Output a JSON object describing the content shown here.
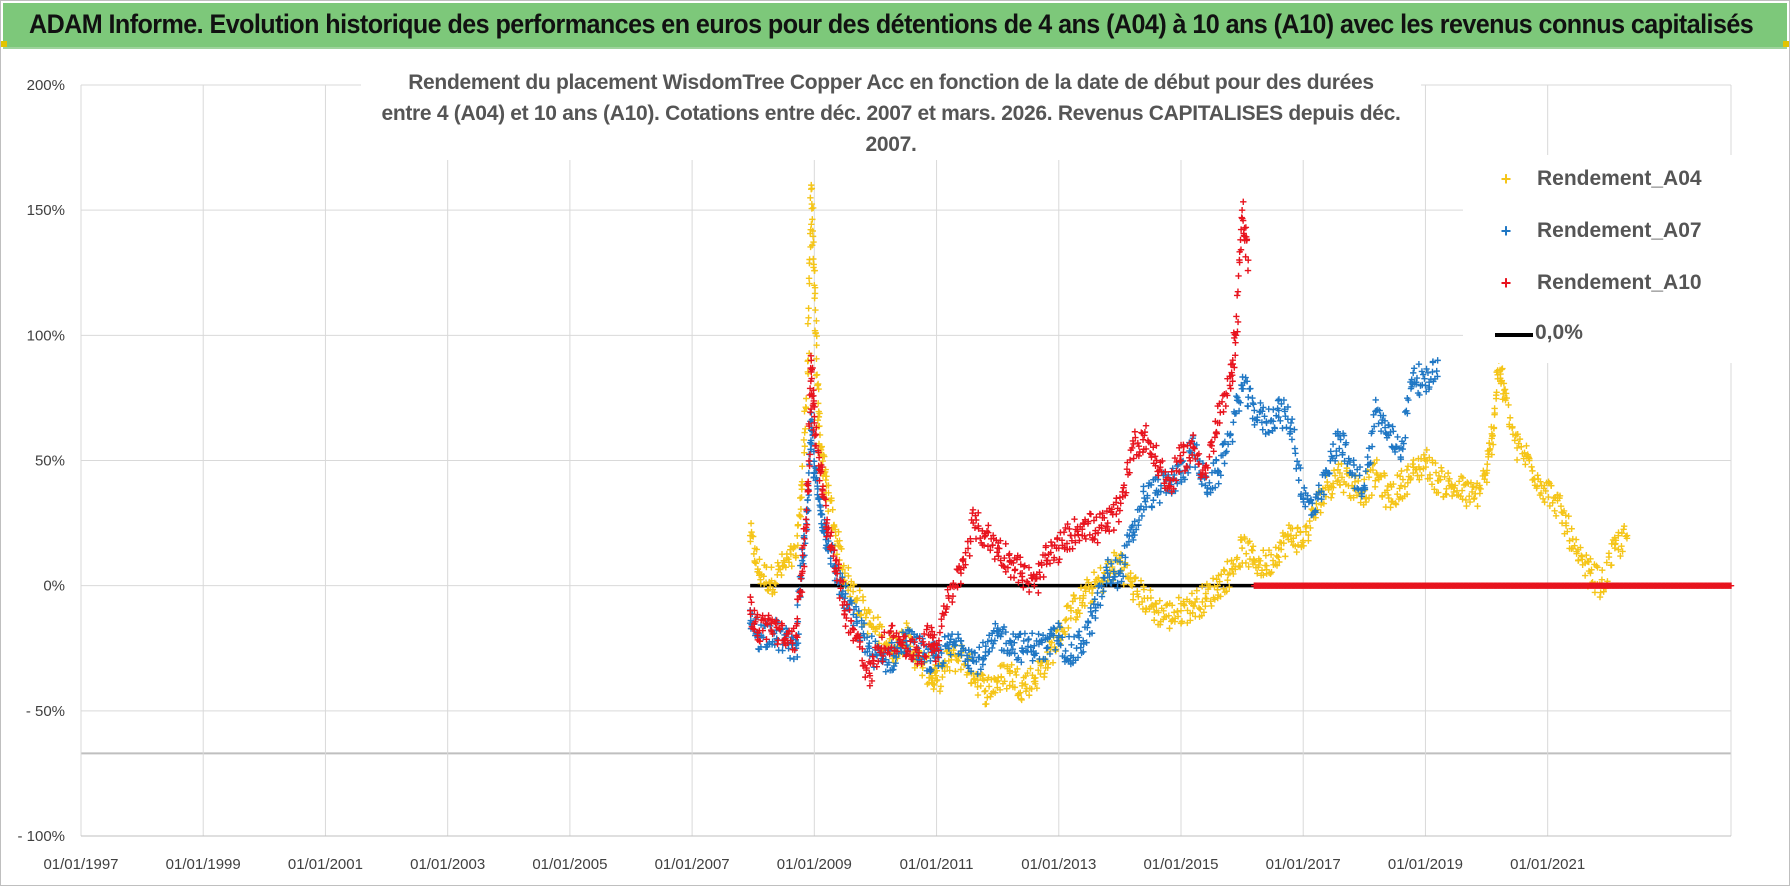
{
  "banner": {
    "title": "ADAM Informe. Evolution historique des performances en euros pour des détentions de 4 ans (A04) à 10 ans (A10) avec les revenus connus capitalisés"
  },
  "colors": {
    "banner": "#7dc87a",
    "a04": "#f5c518",
    "a07": "#1f77c4",
    "a10": "#e8141e",
    "zero": "#000000",
    "grid": "#d9d9d9"
  },
  "chart_data": {
    "type": "scatter",
    "title_line1": "Rendement du placement WisdomTree Copper Acc en fonction de la date de début pour des durées",
    "title_line2": "entre 4 (A04) et 10 ans (A10). Cotations entre déc. 2007 et mars. 2026. Revenus CAPITALISES depuis déc. 2007.",
    "xlabel": "",
    "ylabel": "",
    "x_range": [
      1997.0,
      2024.0
    ],
    "ylim": [
      -100,
      200
    ],
    "y_ticks": [
      200,
      150,
      100,
      50,
      0,
      -50,
      -100
    ],
    "y_tick_labels": [
      "200%",
      "150%",
      "100%",
      "50%",
      "0%",
      "- 50%",
      "- 100%"
    ],
    "x_ticks": [
      1997,
      1999,
      2001,
      2003,
      2005,
      2007,
      2009,
      2011,
      2013,
      2015,
      2017,
      2019,
      2021
    ],
    "x_tick_labels": [
      "01/01/1997",
      "01/01/1999",
      "01/01/2001",
      "01/01/2003",
      "01/01/2005",
      "01/01/2007",
      "01/01/2009",
      "01/01/2011",
      "01/01/2013",
      "01/01/2015",
      "01/01/2017",
      "01/01/2019",
      "01/01/2021"
    ],
    "legend_position": "top-right",
    "series": [
      {
        "name": "Rendement_A04",
        "marker": "+",
        "x": [
          2007.95,
          2008.1,
          2008.3,
          2008.5,
          2008.7,
          2008.8,
          2008.9,
          2008.95,
          2009.0,
          2009.05,
          2009.1,
          2009.2,
          2009.35,
          2009.5,
          2009.7,
          2009.9,
          2010.1,
          2010.3,
          2010.5,
          2010.7,
          2010.9,
          2011.0,
          2011.2,
          2011.4,
          2011.6,
          2011.8,
          2012.0,
          2012.2,
          2012.4,
          2012.6,
          2012.8,
          2013.0,
          2013.2,
          2013.4,
          2013.6,
          2013.8,
          2014.0,
          2014.2,
          2014.4,
          2014.6,
          2014.8,
          2015.0,
          2015.2,
          2015.4,
          2015.6,
          2015.8,
          2016.0,
          2016.2,
          2016.4,
          2016.6,
          2016.8,
          2017.0,
          2017.2,
          2017.4,
          2017.6,
          2017.8,
          2018.0,
          2018.2,
          2018.4,
          2018.6,
          2018.8,
          2019.0,
          2019.2,
          2019.4,
          2019.6,
          2019.8,
          2020.0,
          2020.1,
          2020.2,
          2020.3,
          2020.5,
          2020.7,
          2020.9,
          2021.1,
          2021.3,
          2021.5,
          2021.7,
          2021.9,
          2022.1,
          2022.3
        ],
        "y": [
          20,
          5,
          2,
          8,
          12,
          40,
          90,
          160,
          120,
          80,
          55,
          40,
          20,
          5,
          -5,
          -15,
          -20,
          -25,
          -20,
          -30,
          -35,
          -38,
          -30,
          -28,
          -35,
          -42,
          -38,
          -35,
          -40,
          -37,
          -30,
          -20,
          -10,
          -5,
          0,
          5,
          10,
          0,
          -5,
          -10,
          -12,
          -10,
          -8,
          -5,
          0,
          5,
          15,
          10,
          8,
          15,
          20,
          18,
          30,
          40,
          45,
          40,
          38,
          45,
          35,
          40,
          45,
          50,
          42,
          40,
          38,
          35,
          45,
          60,
          90,
          75,
          55,
          50,
          40,
          35,
          25,
          10,
          5,
          0,
          15,
          20
        ]
      },
      {
        "name": "Rendement_A07",
        "marker": "+",
        "x": [
          2007.95,
          2008.1,
          2008.3,
          2008.5,
          2008.7,
          2008.8,
          2008.9,
          2008.95,
          2009.0,
          2009.1,
          2009.2,
          2009.35,
          2009.5,
          2009.7,
          2009.9,
          2010.1,
          2010.3,
          2010.5,
          2010.7,
          2010.9,
          2011.0,
          2011.2,
          2011.4,
          2011.6,
          2011.8,
          2012.0,
          2012.2,
          2012.4,
          2012.6,
          2012.8,
          2013.0,
          2013.2,
          2013.4,
          2013.6,
          2013.8,
          2014.0,
          2014.2,
          2014.4,
          2014.6,
          2014.8,
          2015.0,
          2015.2,
          2015.4,
          2015.6,
          2015.8,
          2016.0,
          2016.2,
          2016.4,
          2016.6,
          2016.8,
          2017.0,
          2017.2,
          2017.4,
          2017.6,
          2017.8,
          2018.0,
          2018.2,
          2018.4,
          2018.6,
          2018.8,
          2019.0,
          2019.2
        ],
        "y": [
          -15,
          -20,
          -18,
          -22,
          -25,
          10,
          30,
          65,
          45,
          30,
          20,
          5,
          -5,
          -15,
          -25,
          -30,
          -28,
          -22,
          -25,
          -30,
          -28,
          -25,
          -22,
          -30,
          -28,
          -20,
          -22,
          -25,
          -24,
          -25,
          -20,
          -28,
          -22,
          -10,
          5,
          5,
          20,
          35,
          38,
          40,
          45,
          55,
          40,
          45,
          60,
          80,
          70,
          65,
          70,
          65,
          35,
          30,
          45,
          60,
          45,
          40,
          70,
          60,
          55,
          85,
          80,
          90
        ]
      },
      {
        "name": "Rendement_A10",
        "marker": "+",
        "x": [
          2007.95,
          2008.1,
          2008.3,
          2008.5,
          2008.7,
          2008.8,
          2008.9,
          2008.95,
          2009.0,
          2009.1,
          2009.2,
          2009.35,
          2009.5,
          2009.7,
          2009.9,
          2010.1,
          2010.3,
          2010.5,
          2010.7,
          2010.9,
          2011.0,
          2011.2,
          2011.4,
          2011.6,
          2011.8,
          2012.0,
          2012.2,
          2012.4,
          2012.6,
          2012.8,
          2013.0,
          2013.2,
          2013.4,
          2013.6,
          2013.8,
          2014.0,
          2014.2,
          2014.4,
          2014.6,
          2014.8,
          2015.0,
          2015.2,
          2015.4,
          2015.6,
          2015.8,
          2015.9,
          2016.0,
          2016.1
        ],
        "y": [
          -10,
          -18,
          -15,
          -22,
          -20,
          5,
          40,
          90,
          65,
          45,
          25,
          10,
          -10,
          -20,
          -35,
          -25,
          -20,
          -25,
          -28,
          -20,
          -25,
          -5,
          5,
          25,
          20,
          15,
          10,
          5,
          0,
          10,
          15,
          20,
          25,
          22,
          25,
          30,
          55,
          60,
          50,
          40,
          50,
          55,
          45,
          65,
          80,
          100,
          150,
          130
        ]
      },
      {
        "name": "0,0%",
        "line": true,
        "x": [
          2007.95,
          2024.0
        ],
        "y": [
          0,
          0
        ]
      }
    ],
    "zero_red_band_x": [
      2016.2,
      2024.0
    ]
  }
}
